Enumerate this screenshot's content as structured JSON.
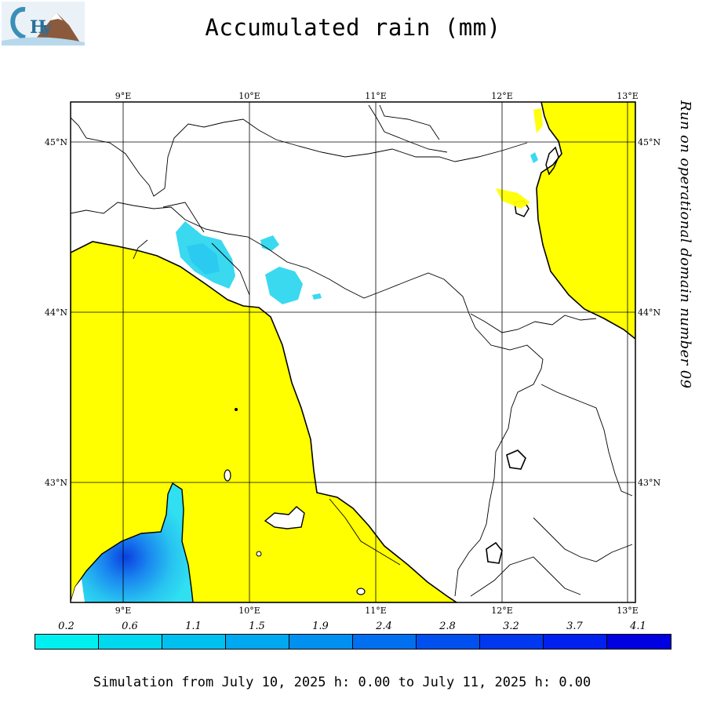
{
  "title": "Accumulated rain (mm)",
  "side_caption": "Run on operational domain number 09",
  "footer": "Simulation from July 10, 2025 h: 0.00 to July 11, 2025 h: 0.00",
  "logo": {
    "alt_text": "CHyM",
    "icon": "chym-logo-mountain-icon"
  },
  "map": {
    "lon_range": [
      8.6,
      13.05
    ],
    "lat_range": [
      42.35,
      45.25
    ],
    "lon_ticks": [
      "9°E",
      "10°E",
      "11°E",
      "12°E",
      "13°E"
    ],
    "lat_ticks": [
      "45°N",
      "44°N",
      "43°N"
    ],
    "colors": {
      "sea": "#ffff00",
      "land": "#ffffff",
      "border": "#000000"
    }
  },
  "legend": {
    "values": [
      "0.2",
      "0.6",
      "1.1",
      "1.5",
      "1.9",
      "2.4",
      "2.8",
      "3.2",
      "3.7",
      "4.1"
    ],
    "colors": [
      "#00f0f0",
      "#00d8f0",
      "#00c0f0",
      "#00a8f0",
      "#0090f0",
      "#0070f0",
      "#0050f0",
      "#0038f0",
      "#0020f0",
      "#0000e0"
    ]
  }
}
